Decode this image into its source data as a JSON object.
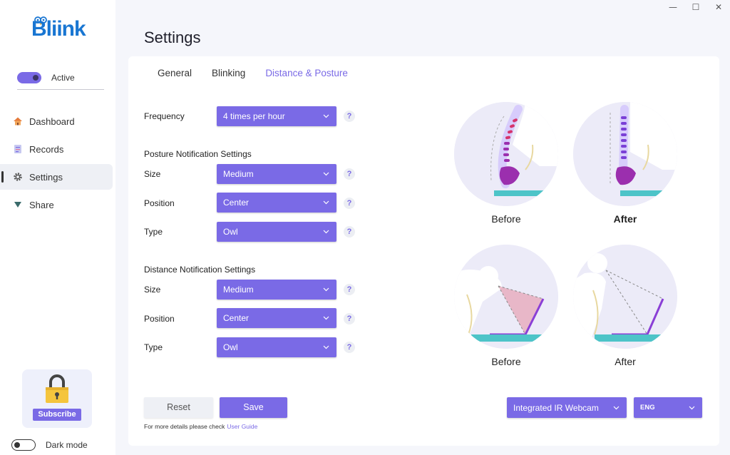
{
  "window": {
    "minimize": "—",
    "maximize": "☐",
    "close": "✕"
  },
  "sidebar": {
    "logo": "Bliink",
    "active_toggle": {
      "label": "Active",
      "on": true
    },
    "items": [
      {
        "label": "Dashboard",
        "icon": "home-icon"
      },
      {
        "label": "Records",
        "icon": "records-icon"
      },
      {
        "label": "Settings",
        "icon": "gear-icon"
      },
      {
        "label": "Share",
        "icon": "share-icon"
      }
    ],
    "active_item": "Settings",
    "subscribe_label": "Subscribe",
    "dark_mode": {
      "label": "Dark mode",
      "on": false
    }
  },
  "page": {
    "title": "Settings"
  },
  "tabs": [
    {
      "label": "General",
      "active": false
    },
    {
      "label": "Blinking",
      "active": false
    },
    {
      "label": "Distance & Posture",
      "active": true
    }
  ],
  "form": {
    "frequency": {
      "label": "Frequency",
      "value": "4 times per hour"
    },
    "posture": {
      "title": "Posture Notification Settings",
      "size": {
        "label": "Size",
        "value": "Medium"
      },
      "position": {
        "label": "Position",
        "value": "Center"
      },
      "type": {
        "label": "Type",
        "value": "Owl"
      }
    },
    "distance": {
      "title": "Distance Notification Settings",
      "size": {
        "label": "Size",
        "value": "Medium"
      },
      "position": {
        "label": "Position",
        "value": "Center"
      },
      "type": {
        "label": "Type",
        "value": "Owl"
      }
    },
    "help": "?"
  },
  "illustrations": {
    "posture_before": "Before",
    "posture_after": "After",
    "distance_before": "Before",
    "distance_after": "After"
  },
  "actions": {
    "reset": "Reset",
    "save": "Save",
    "footnote": "For more details please check",
    "guide_link": "User Guide",
    "webcam": "Integrated IR Webcam",
    "language": "ENG"
  },
  "colors": {
    "accent": "#7a6ae6",
    "logo": "#1976d2",
    "teal": "#4dc4c8"
  }
}
